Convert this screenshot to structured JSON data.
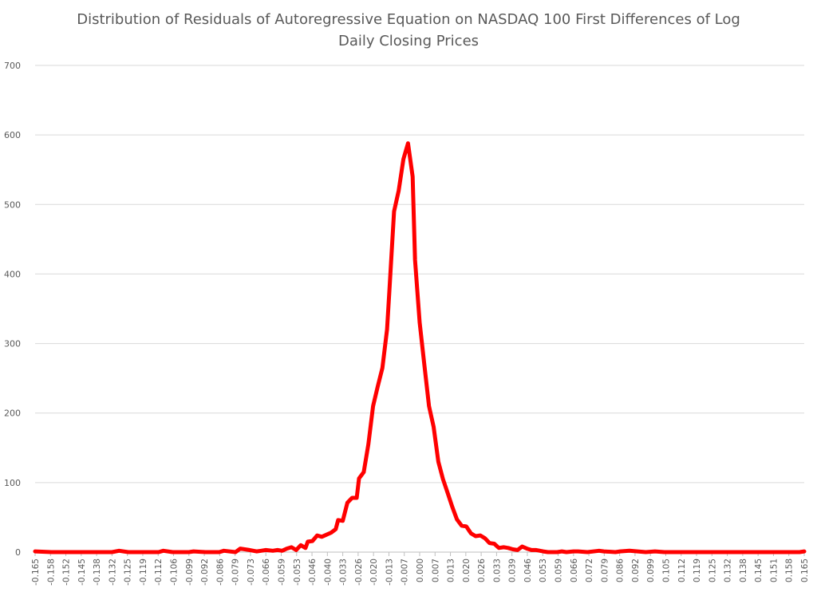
{
  "chart_data": {
    "type": "line",
    "title": "Distribution of Residuals of Autoregressive Equation on NASDAQ 100 First Differences of Log Daily Closing Prices",
    "title_lines": [
      "Distribution of Residuals of Autoregressive Equation on NASDAQ 100 First Differences of Log",
      "Daily Closing Prices"
    ],
    "xlabel": "",
    "ylabel": "",
    "ylim": [
      0,
      700
    ],
    "yticks": [
      0,
      100,
      200,
      300,
      400,
      500,
      600,
      700
    ],
    "xlim": [
      -0.165,
      0.165
    ],
    "grid": true,
    "legend": "none",
    "line_color": "#ff0000",
    "xtick_labels": [
      "-0.165",
      "-0.158",
      "-0.152",
      "-0.145",
      "-0.138",
      "-0.132",
      "-0.125",
      "-0.119",
      "-0.112",
      "-0.106",
      "-0.099",
      "-0.092",
      "-0.086",
      "-0.079",
      "-0.073",
      "-0.066",
      "-0.059",
      "-0.053",
      "-0.046",
      "-0.040",
      "-0.033",
      "-0.026",
      "-0.020",
      "-0.013",
      "-0.007",
      "0.000",
      "0.007",
      "0.013",
      "0.020",
      "0.026",
      "0.033",
      "0.039",
      "0.046",
      "0.053",
      "0.059",
      "0.066",
      "0.072",
      "0.079",
      "0.086",
      "0.092",
      "0.099",
      "0.105",
      "0.112",
      "0.119",
      "0.125",
      "0.132",
      "0.138",
      "0.145",
      "0.151",
      "0.158",
      "0.165"
    ],
    "series": [
      {
        "x": [
          -0.165,
          -0.158,
          -0.152,
          -0.145,
          -0.138,
          -0.132,
          -0.129,
          -0.125,
          -0.119,
          -0.112,
          -0.11,
          -0.106,
          -0.099,
          -0.097,
          -0.092,
          -0.086,
          -0.084,
          -0.079,
          -0.077,
          -0.075,
          -0.073,
          -0.07,
          -0.068,
          -0.066,
          -0.063,
          -0.061,
          -0.059,
          -0.057,
          -0.055,
          -0.053,
          -0.051,
          -0.049,
          -0.048,
          -0.046,
          -0.044,
          -0.042,
          -0.04,
          -0.038,
          -0.036,
          -0.035,
          -0.033,
          -0.031,
          -0.029,
          -0.027,
          -0.026,
          -0.024,
          -0.022,
          -0.02,
          -0.018,
          -0.016,
          -0.014,
          -0.013,
          -0.011,
          -0.009,
          -0.007,
          -0.005,
          -0.003,
          -0.002,
          0.0,
          0.002,
          0.004,
          0.006,
          0.008,
          0.01,
          0.012,
          0.014,
          0.016,
          0.018,
          0.02,
          0.022,
          0.024,
          0.026,
          0.028,
          0.03,
          0.032,
          0.034,
          0.036,
          0.038,
          0.04,
          0.042,
          0.044,
          0.046,
          0.048,
          0.05,
          0.053,
          0.055,
          0.057,
          0.059,
          0.061,
          0.063,
          0.066,
          0.068,
          0.072,
          0.077,
          0.079,
          0.084,
          0.086,
          0.09,
          0.097,
          0.101,
          0.105,
          0.11,
          0.112,
          0.119,
          0.125,
          0.132,
          0.138,
          0.145,
          0.151,
          0.158,
          0.163,
          0.165
        ],
        "values": [
          1,
          0,
          0,
          0,
          0,
          0,
          2,
          0,
          0,
          0,
          2,
          0,
          0,
          1,
          0,
          0,
          2,
          0,
          5,
          4,
          3,
          1,
          2,
          3,
          2,
          3,
          2,
          5,
          7,
          3,
          10,
          6,
          15,
          16,
          24,
          22,
          25,
          28,
          33,
          46,
          45,
          71,
          78,
          78,
          106,
          115,
          155,
          210,
          238,
          265,
          320,
          375,
          490,
          520,
          565,
          588,
          540,
          420,
          330,
          270,
          210,
          180,
          130,
          105,
          85,
          65,
          47,
          38,
          37,
          27,
          23,
          24,
          20,
          13,
          12,
          6,
          7,
          6,
          4,
          3,
          8,
          5,
          3,
          3,
          1,
          0,
          0,
          0,
          1,
          0,
          1,
          1,
          0,
          2,
          1,
          0,
          1,
          2,
          0,
          1,
          0,
          0,
          0,
          0,
          0,
          0,
          0,
          0,
          0,
          0,
          0,
          1
        ]
      }
    ]
  }
}
